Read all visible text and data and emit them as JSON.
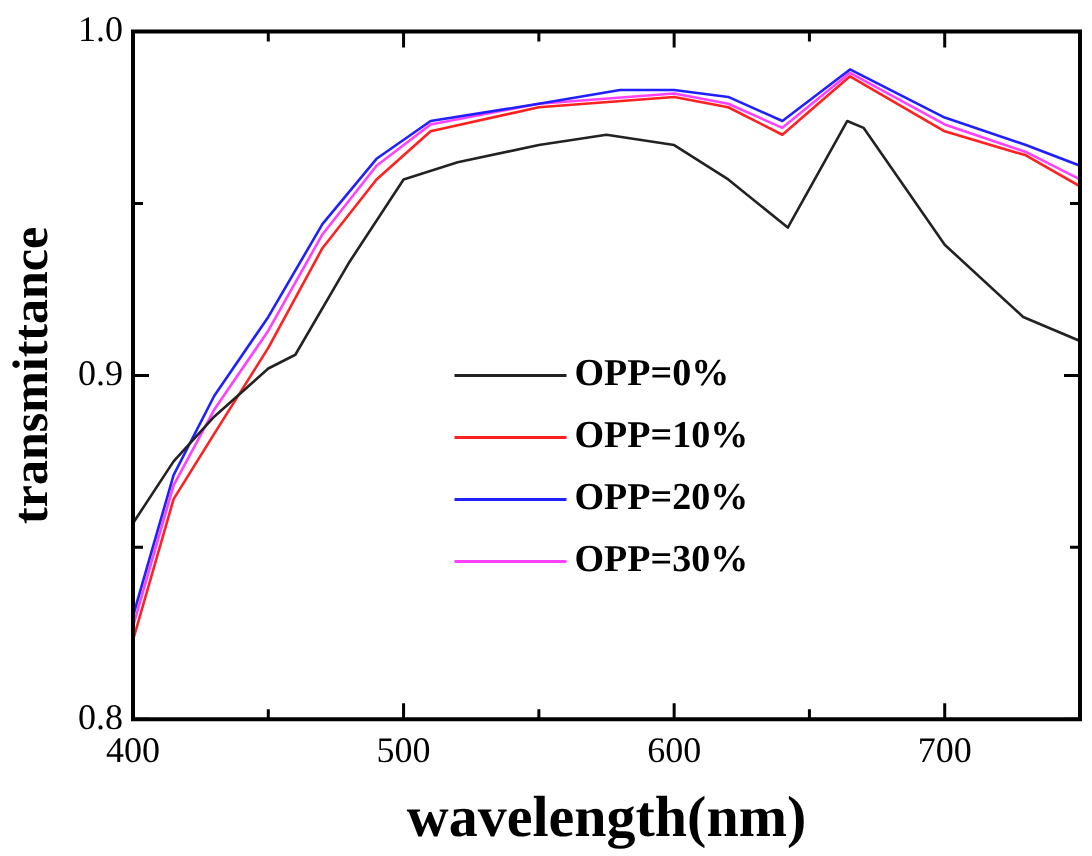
{
  "chart_data": {
    "type": "line",
    "xlabel": "wavelength(nm)",
    "ylabel": "transmittance",
    "series": [
      {
        "name": "OPP=0%",
        "color": "#222222",
        "x": [
          400,
          415,
          430,
          450,
          460,
          480,
          500,
          520,
          550,
          575,
          600,
          620,
          642,
          664,
          670,
          700,
          729,
          750
        ],
        "values": [
          0.857,
          0.875,
          0.888,
          0.902,
          0.906,
          0.933,
          0.957,
          0.962,
          0.967,
          0.97,
          0.967,
          0.957,
          0.943,
          0.974,
          0.972,
          0.938,
          0.917,
          0.91
        ]
      },
      {
        "name": "OPP=10%",
        "color": "#ff2020",
        "x": [
          400,
          415,
          430,
          450,
          470,
          490,
          510,
          550,
          600,
          620,
          640,
          665,
          700,
          730,
          750
        ],
        "values": [
          0.823,
          0.864,
          0.883,
          0.908,
          0.937,
          0.957,
          0.971,
          0.978,
          0.981,
          0.978,
          0.97,
          0.987,
          0.971,
          0.964,
          0.955
        ]
      },
      {
        "name": "OPP=20%",
        "color": "#2020ff",
        "x": [
          400,
          415,
          430,
          450,
          470,
          490,
          510,
          550,
          580,
          600,
          620,
          640,
          665,
          700,
          730,
          750
        ],
        "values": [
          0.83,
          0.871,
          0.894,
          0.917,
          0.944,
          0.963,
          0.974,
          0.979,
          0.983,
          0.983,
          0.981,
          0.974,
          0.989,
          0.975,
          0.967,
          0.961
        ]
      },
      {
        "name": "OPP=30%",
        "color": "#ff40ff",
        "x": [
          400,
          415,
          430,
          450,
          470,
          490,
          510,
          550,
          600,
          620,
          640,
          665,
          700,
          730,
          750
        ],
        "values": [
          0.827,
          0.868,
          0.89,
          0.913,
          0.941,
          0.961,
          0.973,
          0.979,
          0.982,
          0.979,
          0.972,
          0.988,
          0.973,
          0.965,
          0.957
        ]
      }
    ],
    "xlim": [
      400,
      750
    ],
    "xticks": [
      400,
      {
        "value": 450,
        "label": null
      },
      500,
      {
        "value": 550,
        "label": null
      },
      600,
      {
        "value": 650,
        "label": null
      },
      700,
      {
        "value": 750,
        "label": null
      }
    ],
    "ylim": [
      0.8,
      1.0
    ],
    "yticks": [
      0.8,
      {
        "value": 0.85,
        "label": null
      },
      0.9,
      {
        "value": 0.95,
        "label": null
      },
      {
        "value": 1.0,
        "label": "1.0"
      }
    ],
    "legend": "right",
    "grid": false,
    "marker": "none",
    "line_style": "solid"
  }
}
